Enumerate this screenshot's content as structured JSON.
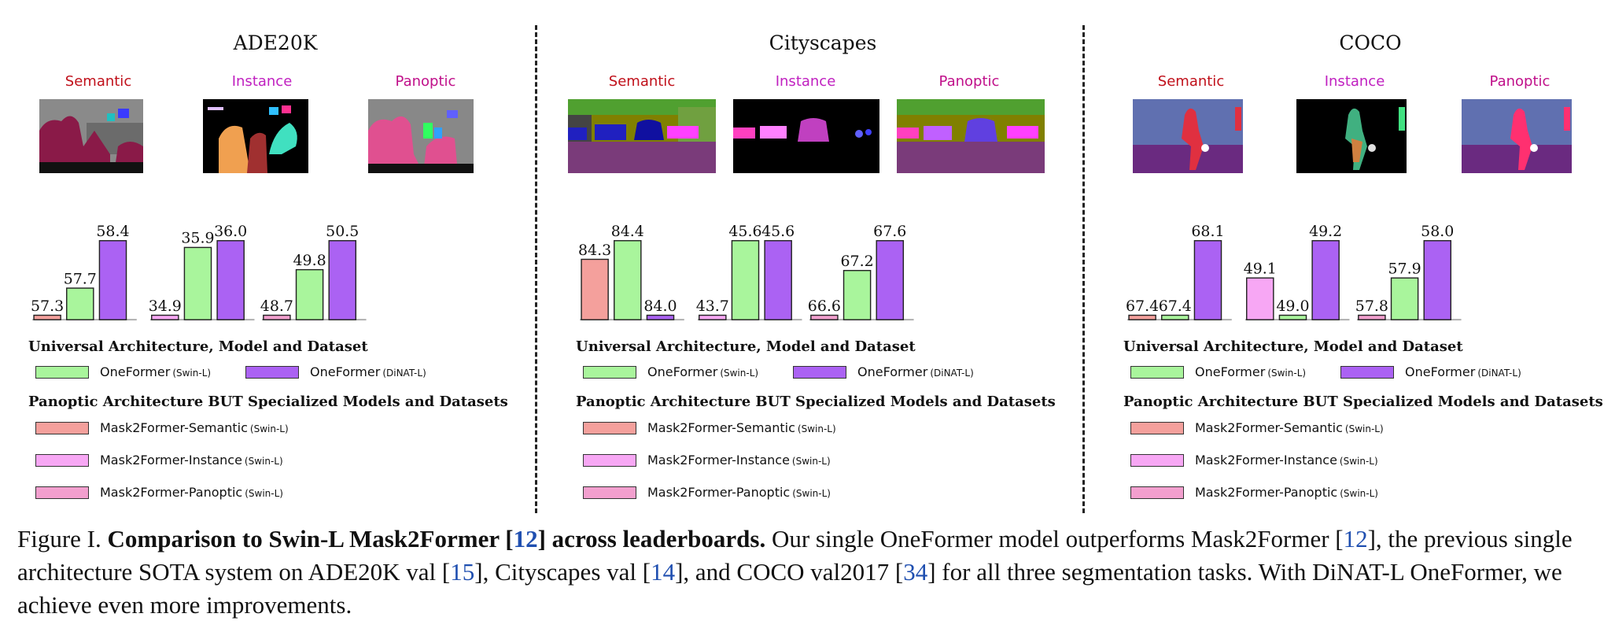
{
  "colors": {
    "m2f_semantic": "#f4a09c",
    "m2f_instance": "#f7a7f4",
    "m2f_panoptic": "#f29fce",
    "oneformer_swin": "#a9f59c",
    "oneformer_dinat": "#ab62f3",
    "semantic_label": "#c0101a",
    "instance_label": "#c020c0",
    "panoptic_label": "#c0108a"
  },
  "panels": [
    {
      "title": "ADE20K",
      "tasks": [
        "Semantic",
        "Instance",
        "Panoptic"
      ],
      "legend": {
        "universal_heading": "Universal Architecture, Model and Dataset",
        "oneformer_swin": "OneFormer",
        "oneformer_swin_sub": "(Swin-L)",
        "oneformer_dinat": "OneFormer",
        "oneformer_dinat_sub": "(DiNAT-L)",
        "panoptic_heading": "Panoptic Architecture BUT Specialized Models and Datasets",
        "m2f_semantic": "Mask2Former-Semantic",
        "m2f_instance": "Mask2Former-Instance",
        "m2f_panoptic": "Mask2Former-Panoptic",
        "sub": "(Swin-L)"
      }
    },
    {
      "title": "Cityscapes",
      "tasks": [
        "Semantic",
        "Instance",
        "Panoptic"
      ],
      "legend": {
        "universal_heading": "Universal Architecture, Model and Dataset",
        "oneformer_swin": "OneFormer",
        "oneformer_swin_sub": "(Swin-L)",
        "oneformer_dinat": "OneFormer",
        "oneformer_dinat_sub": "(DiNAT-L)",
        "panoptic_heading": "Panoptic Architecture BUT Specialized Models and Datasets",
        "m2f_semantic": "Mask2Former-Semantic",
        "m2f_instance": "Mask2Former-Instance",
        "m2f_panoptic": "Mask2Former-Panoptic",
        "sub": "(Swin-L)"
      }
    },
    {
      "title": "COCO",
      "tasks": [
        "Semantic",
        "Instance",
        "Panoptic"
      ],
      "legend": {
        "universal_heading": "Universal Architecture, Model and Dataset",
        "oneformer_swin": "OneFormer",
        "oneformer_swin_sub": "(Swin-L)",
        "oneformer_dinat": "OneFormer",
        "oneformer_dinat_sub": "(DiNAT-L)",
        "panoptic_heading": "Panoptic Architecture BUT Specialized Models and Datasets",
        "m2f_semantic": "Mask2Former-Semantic",
        "m2f_instance": "Mask2Former-Instance",
        "m2f_panoptic": "Mask2Former-Panoptic",
        "sub": "(Swin-L)"
      }
    }
  ],
  "caption": {
    "prefix": "Figure I. ",
    "bold_a": "Comparison to Swin-L Mask2Former [",
    "ref_12a": "12",
    "bold_b": "] across leaderboards.",
    "t1": " Our single OneFormer model outperforms Mask2Former [",
    "ref_12b": "12",
    "t2": "], the previous single architecture SOTA system on ADE20K val [",
    "ref_15": "15",
    "t3": "], Cityscapes val [",
    "ref_14": "14",
    "t4": "], and COCO val2017 [",
    "ref_34": "34",
    "t5": "] for all three segmentation tasks. With DiNAT-L OneFormer, we achieve even more improvements."
  },
  "chart_data": [
    {
      "type": "bar",
      "title": "ADE20K",
      "groups": [
        {
          "task": "Semantic",
          "bars": [
            {
              "model": "Mask2Former-Semantic",
              "value": 57.3
            },
            {
              "model": "OneFormer (Swin-L)",
              "value": 57.7
            },
            {
              "model": "OneFormer (DiNAT-L)",
              "value": 58.4
            }
          ]
        },
        {
          "task": "Instance",
          "bars": [
            {
              "model": "Mask2Former-Instance",
              "value": 34.9
            },
            {
              "model": "OneFormer (Swin-L)",
              "value": 35.9
            },
            {
              "model": "OneFormer (DiNAT-L)",
              "value": 36.0
            }
          ]
        },
        {
          "task": "Panoptic",
          "bars": [
            {
              "model": "Mask2Former-Panoptic",
              "value": 48.7
            },
            {
              "model": "OneFormer (Swin-L)",
              "value": 49.8
            },
            {
              "model": "OneFormer (DiNAT-L)",
              "value": 50.5
            }
          ]
        }
      ]
    },
    {
      "type": "bar",
      "title": "Cityscapes",
      "groups": [
        {
          "task": "Semantic",
          "bars": [
            {
              "model": "Mask2Former-Semantic",
              "value": 84.3
            },
            {
              "model": "OneFormer (Swin-L)",
              "value": 84.4
            },
            {
              "model": "OneFormer (DiNAT-L)",
              "value": 84.0
            }
          ]
        },
        {
          "task": "Instance",
          "bars": [
            {
              "model": "Mask2Former-Instance",
              "value": 43.7
            },
            {
              "model": "OneFormer (Swin-L)",
              "value": 45.6
            },
            {
              "model": "OneFormer (DiNAT-L)",
              "value": 45.6
            }
          ]
        },
        {
          "task": "Panoptic",
          "bars": [
            {
              "model": "Mask2Former-Panoptic",
              "value": 66.6
            },
            {
              "model": "OneFormer (Swin-L)",
              "value": 67.2
            },
            {
              "model": "OneFormer (DiNAT-L)",
              "value": 67.6
            }
          ]
        }
      ]
    },
    {
      "type": "bar",
      "title": "COCO",
      "groups": [
        {
          "task": "Semantic",
          "bars": [
            {
              "model": "Mask2Former-Semantic",
              "value": 67.4
            },
            {
              "model": "OneFormer (Swin-L)",
              "value": 67.4
            },
            {
              "model": "OneFormer (DiNAT-L)",
              "value": 68.1
            }
          ]
        },
        {
          "task": "Instance",
          "bars": [
            {
              "model": "Mask2Former-Instance",
              "value": 49.1
            },
            {
              "model": "OneFormer (Swin-L)",
              "value": 49.0
            },
            {
              "model": "OneFormer (DiNAT-L)",
              "value": 49.2
            }
          ]
        },
        {
          "task": "Panoptic",
          "bars": [
            {
              "model": "Mask2Former-Panoptic",
              "value": 57.8
            },
            {
              "model": "OneFormer (Swin-L)",
              "value": 57.9
            },
            {
              "model": "OneFormer (DiNAT-L)",
              "value": 58.0
            }
          ]
        }
      ]
    }
  ]
}
